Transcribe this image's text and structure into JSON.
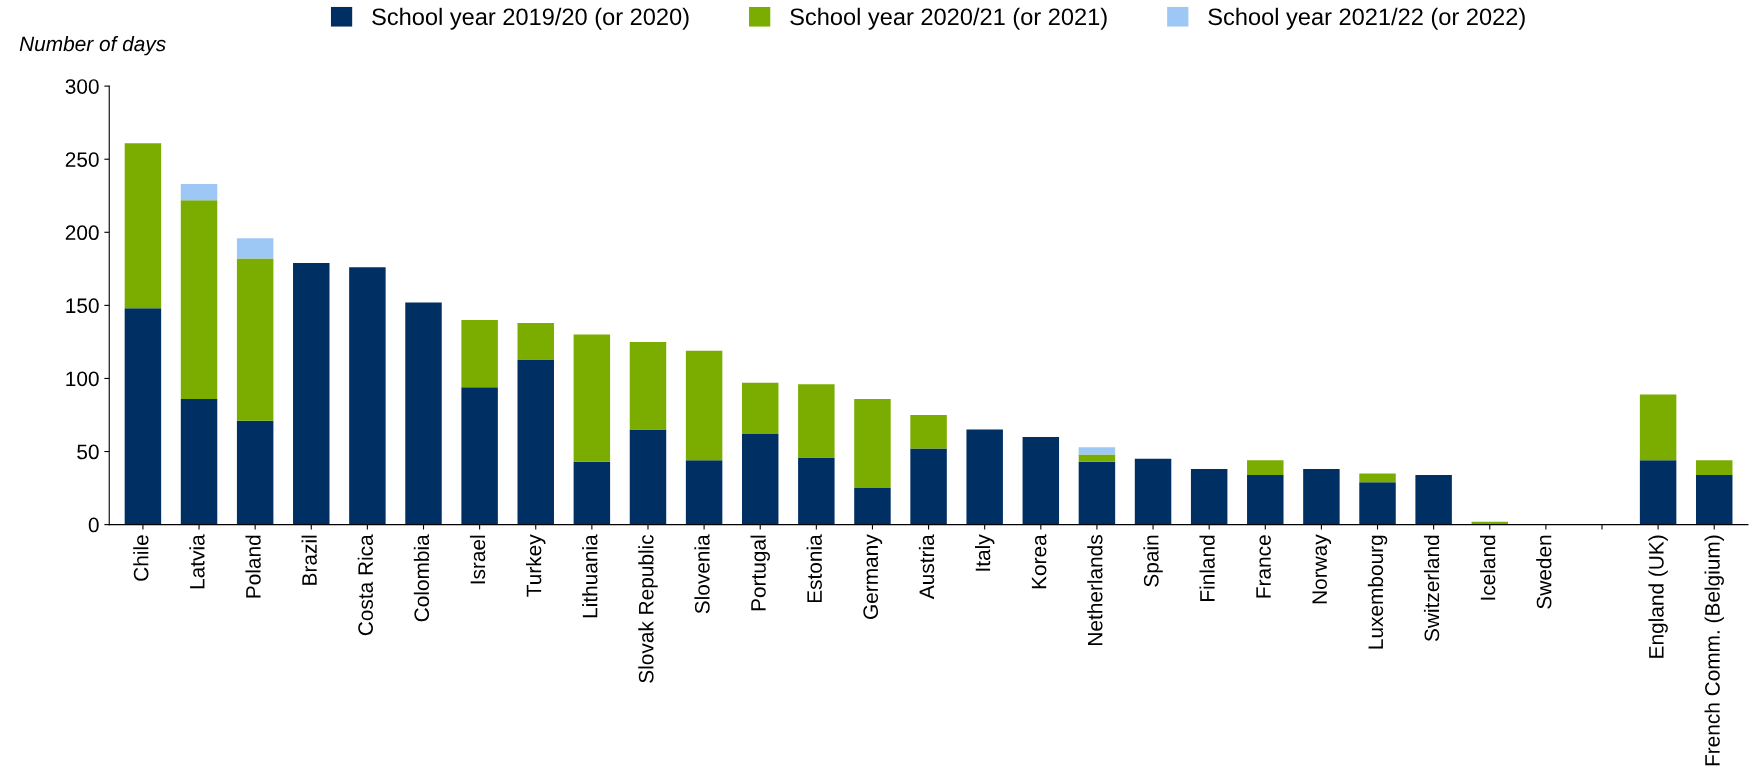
{
  "chart_data": {
    "type": "bar",
    "stacked": true,
    "ylabel": "Number of days",
    "ylim": [
      0,
      300
    ],
    "yticks": [
      0,
      50,
      100,
      150,
      200,
      250,
      300
    ],
    "grid": false,
    "legend": "top",
    "categories": [
      "Chile",
      "Latvia",
      "Poland",
      "Brazil",
      "Costa Rica",
      "Colombia",
      "Israel",
      "Turkey",
      "Lithuania",
      "Slovak Republic",
      "Slovenia",
      "Portugal",
      "Estonia",
      "Germany",
      "Austria",
      "Italy",
      "Korea",
      "Netherlands",
      "Spain",
      "Finland",
      "France",
      "Norway",
      "Luxembourg",
      "Switzerland",
      "Iceland",
      "Sweden",
      null,
      "England (UK)",
      "French Comm. (Belgium)"
    ],
    "series": [
      {
        "name": "School year 2019/20 (or 2020)",
        "color": "#002f63",
        "values": [
          148,
          86,
          71,
          179,
          176,
          152,
          94,
          113,
          43,
          65,
          44,
          62,
          46,
          25,
          52,
          65,
          60,
          43,
          45,
          38,
          34,
          38,
          29,
          34,
          0,
          0,
          null,
          44,
          34
        ]
      },
      {
        "name": "School year 2020/21 (or 2021)",
        "color": "#7aad00",
        "values": [
          113,
          136,
          111,
          0,
          0,
          0,
          46,
          25,
          87,
          60,
          75,
          35,
          50,
          61,
          23,
          0,
          0,
          5,
          0,
          0,
          10,
          0,
          6,
          0,
          2,
          0,
          null,
          45,
          10
        ]
      },
      {
        "name": "School year 2021/22 (or 2022)",
        "color": "#9dc8f5",
        "values": [
          0,
          11,
          14,
          0,
          0,
          0,
          0,
          0,
          0,
          0,
          0,
          0,
          0,
          0,
          0,
          0,
          0,
          5,
          0,
          0,
          0,
          0,
          0,
          0,
          0,
          0,
          null,
          0,
          0
        ]
      }
    ]
  }
}
